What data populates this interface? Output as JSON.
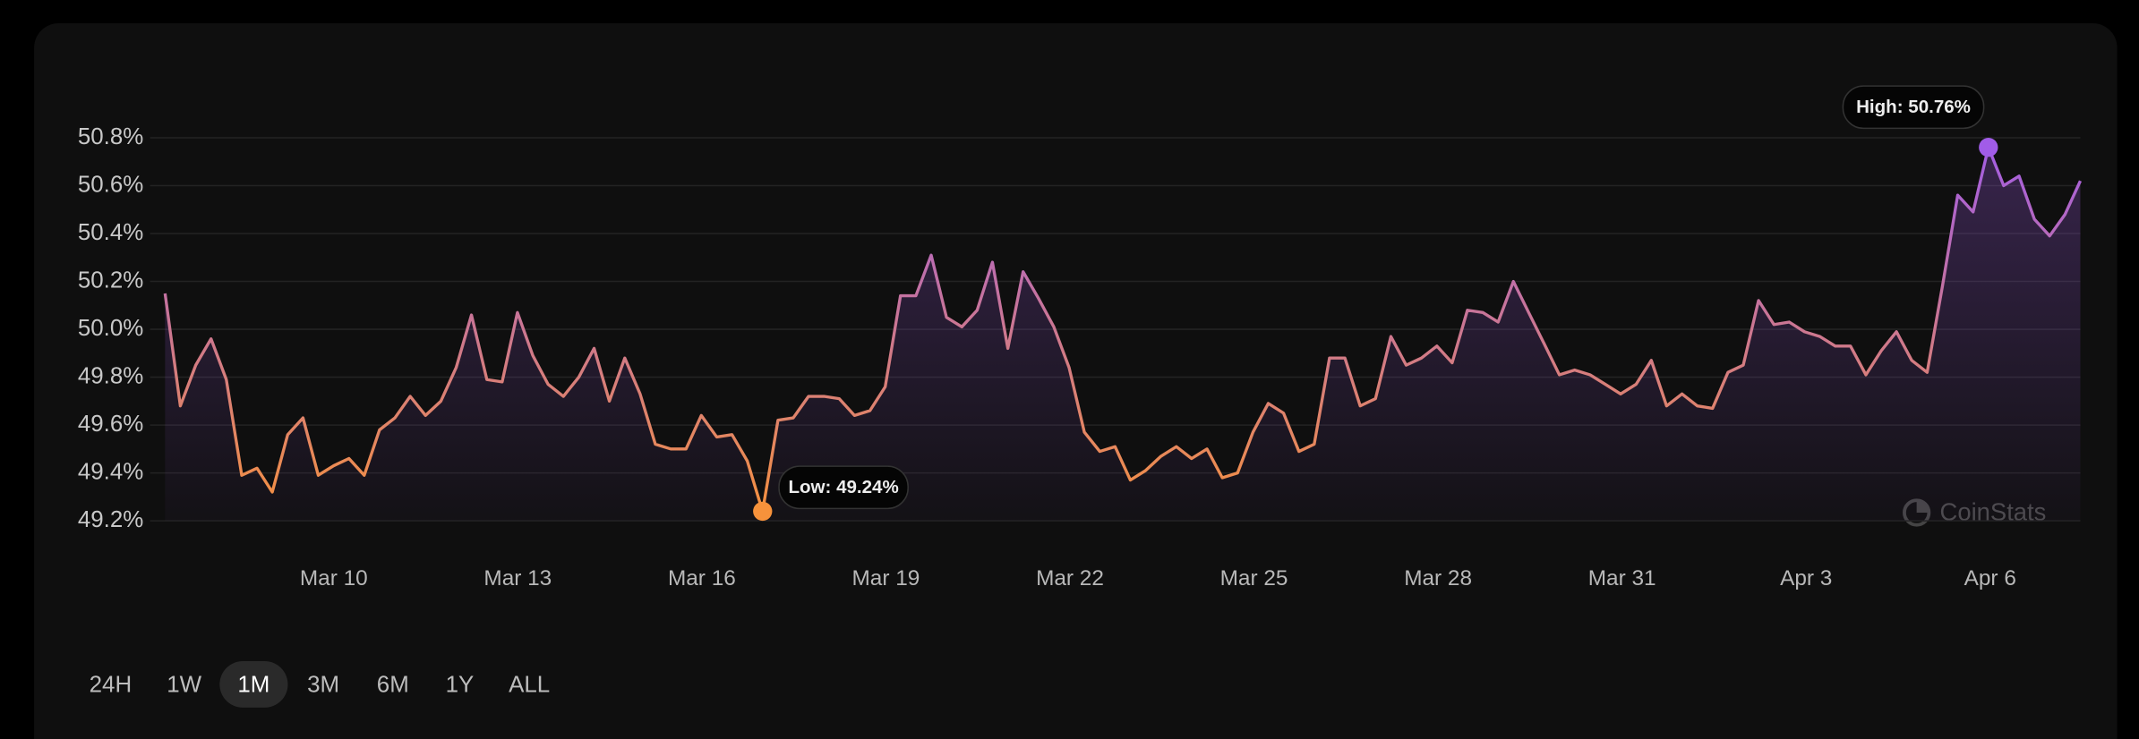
{
  "chart_data": {
    "type": "line",
    "values": [
      50.15,
      49.68,
      49.85,
      49.96,
      49.79,
      49.39,
      49.42,
      49.32,
      49.56,
      49.63,
      49.39,
      49.43,
      49.46,
      49.39,
      49.58,
      49.63,
      49.72,
      49.64,
      49.7,
      49.84,
      50.06,
      49.79,
      49.78,
      50.07,
      49.89,
      49.77,
      49.72,
      49.8,
      49.92,
      49.7,
      49.88,
      49.73,
      49.52,
      49.5,
      49.5,
      49.64,
      49.55,
      49.56,
      49.45,
      49.24,
      49.62,
      49.63,
      49.72,
      49.72,
      49.71,
      49.64,
      49.66,
      49.76,
      50.14,
      50.14,
      50.31,
      50.05,
      50.01,
      50.08,
      50.28,
      49.92,
      50.24,
      50.13,
      50.01,
      49.84,
      49.57,
      49.49,
      49.51,
      49.37,
      49.41,
      49.47,
      49.51,
      49.46,
      49.5,
      49.38,
      49.4,
      49.57,
      49.69,
      49.65,
      49.49,
      49.52,
      49.88,
      49.88,
      49.68,
      49.71,
      49.97,
      49.85,
      49.88,
      49.93,
      49.86,
      50.08,
      50.07,
      50.03,
      50.2,
      50.07,
      49.94,
      49.81,
      49.83,
      49.81,
      49.77,
      49.73,
      49.77,
      49.87,
      49.68,
      49.73,
      49.68,
      49.67,
      49.82,
      49.85,
      50.12,
      50.02,
      50.03,
      49.99,
      49.97,
      49.93,
      49.93,
      49.81,
      49.91,
      49.99,
      49.87,
      49.82,
      50.18,
      50.56,
      50.49,
      50.76,
      50.6,
      50.64,
      50.46,
      50.39,
      50.48,
      50.62
    ],
    "colors": [
      "#f7923b",
      "#a15ce8"
    ],
    "xlim": [
      7.25,
      38.47
    ],
    "xticks": [
      {
        "value": 10,
        "label": "Mar 10"
      },
      {
        "value": 13,
        "label": "Mar 13"
      },
      {
        "value": 16,
        "label": "Mar 16"
      },
      {
        "value": 19,
        "label": "Mar 19"
      },
      {
        "value": 22,
        "label": "Mar 22"
      },
      {
        "value": 25,
        "label": "Mar 25"
      },
      {
        "value": 28,
        "label": "Mar 28"
      },
      {
        "value": 31,
        "label": "Mar 31"
      },
      {
        "value": 34,
        "label": "Apr 3"
      },
      {
        "value": 37,
        "label": "Apr 6"
      }
    ],
    "ylim": [
      49.2,
      50.8
    ],
    "yticks": [
      {
        "value": 49.2,
        "label": "49.2%"
      },
      {
        "value": 49.4,
        "label": "49.4%"
      },
      {
        "value": 49.6,
        "label": "49.6%"
      },
      {
        "value": 49.8,
        "label": "49.8%"
      },
      {
        "value": 50.0,
        "label": "50.0%"
      },
      {
        "value": 50.2,
        "label": "50.2%"
      },
      {
        "value": 50.4,
        "label": "50.4%"
      },
      {
        "value": 50.6,
        "label": "50.6%"
      },
      {
        "value": 50.8,
        "label": "50.8%"
      }
    ],
    "grid": true,
    "annotations": [
      {
        "text": "Low: 49.24%",
        "value": 49.24,
        "color": "#f7923b"
      },
      {
        "text": "High: 50.76%",
        "value": 50.76,
        "color": "#a15ce8"
      }
    ]
  },
  "watermark": "CoinStats",
  "ranges": [
    "24H",
    "1W",
    "1M",
    "3M",
    "6M",
    "1Y",
    "ALL"
  ],
  "selected": "1M"
}
